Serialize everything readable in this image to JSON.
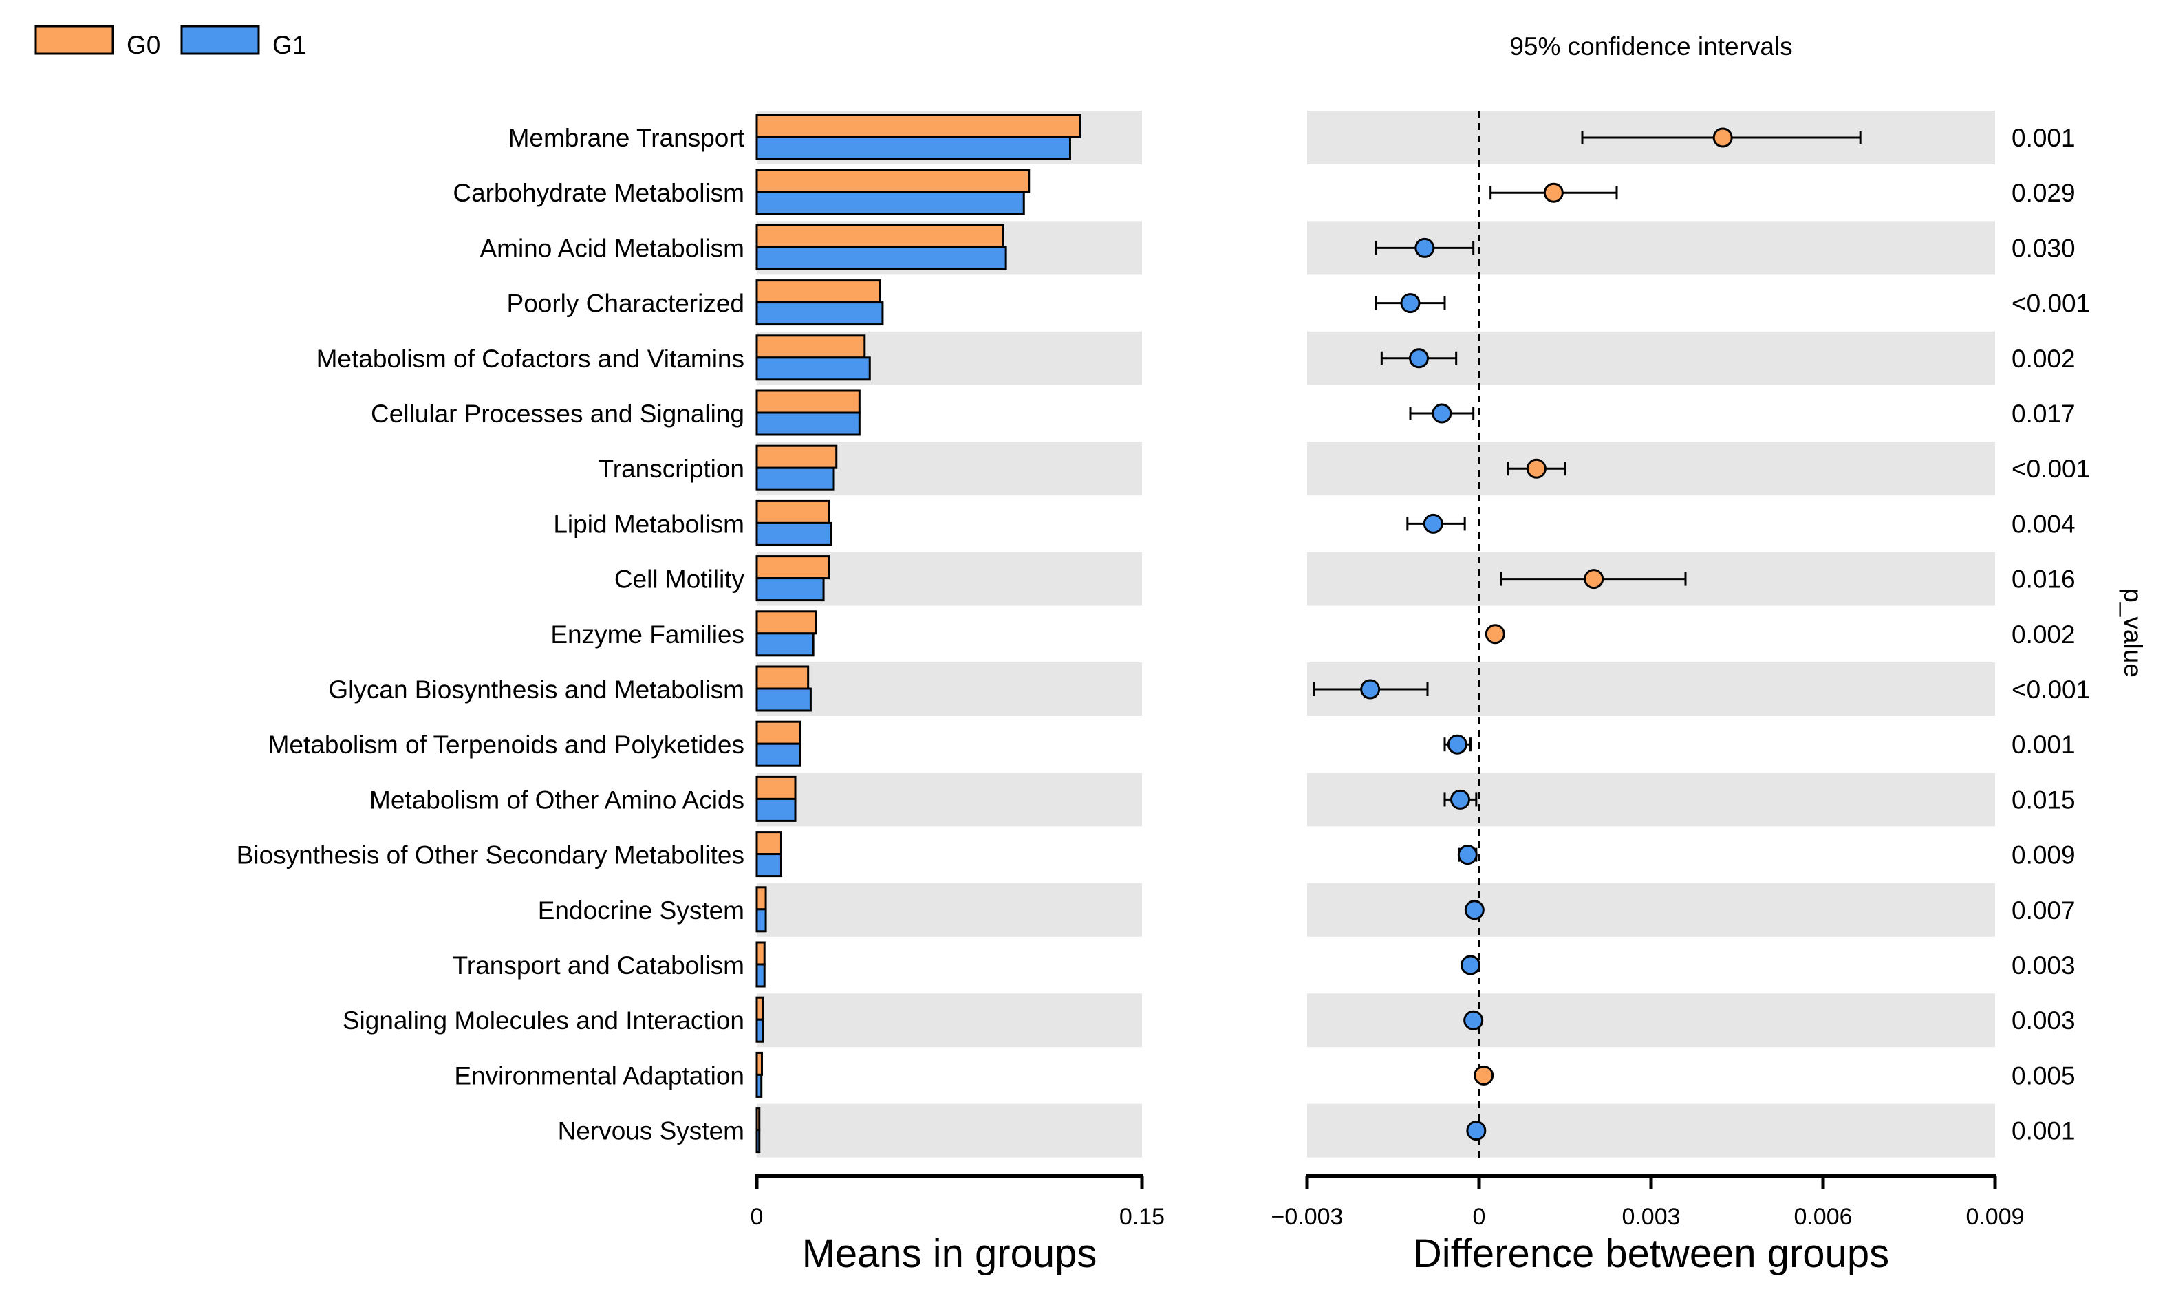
{
  "chart_data": {
    "type": "bar",
    "legend": [
      {
        "name": "G0",
        "color": "#FCA35D"
      },
      {
        "name": "G1",
        "color": "#4A96EE"
      }
    ],
    "categories": [
      "Membrane Transport",
      "Carbohydrate Metabolism",
      "Amino Acid Metabolism",
      "Poorly Characterized",
      "Metabolism of Cofactors and Vitamins",
      "Cellular Processes and Signaling",
      "Transcription",
      "Lipid Metabolism",
      "Cell Motility",
      "Enzyme Families",
      "Glycan Biosynthesis and Metabolism",
      "Metabolism of Terpenoids and Polyketides",
      "Metabolism of Other Amino Acids",
      "Biosynthesis of Other Secondary Metabolites",
      "Endocrine System",
      "Transport and Catabolism",
      "Signaling Molecules and Interaction",
      "Environmental Adaptation",
      "Nervous System"
    ],
    "means_panel": {
      "xlabel": "Means in groups",
      "xlim": [
        0,
        0.15
      ],
      "xticks": [
        "0",
        "0.15"
      ],
      "series": [
        {
          "name": "G0",
          "values": [
            0.126,
            0.106,
            0.096,
            0.048,
            0.042,
            0.04,
            0.031,
            0.028,
            0.028,
            0.023,
            0.02,
            0.017,
            0.015,
            0.0095,
            0.0035,
            0.003,
            0.0023,
            0.002,
            0.001
          ]
        },
        {
          "name": "G1",
          "values": [
            0.122,
            0.104,
            0.097,
            0.049,
            0.044,
            0.04,
            0.03,
            0.029,
            0.026,
            0.022,
            0.021,
            0.017,
            0.015,
            0.0095,
            0.0035,
            0.003,
            0.0023,
            0.0018,
            0.001
          ]
        }
      ]
    },
    "ci_panel": {
      "title": "95% confidence intervals",
      "xlabel": "Difference between groups",
      "xlim": [
        -0.003,
        0.009
      ],
      "xticks": [
        "−0.003",
        "0",
        "0.003",
        "0.006",
        "0.009"
      ],
      "diff": [
        0.00425,
        0.0013,
        -0.00095,
        -0.0012,
        -0.00105,
        -0.00065,
        0.001,
        -0.0008,
        0.002,
        0.00028,
        -0.0019,
        -0.00038,
        -0.00033,
        -0.0002,
        -8e-05,
        -0.00015,
        -0.0001,
        8e-05,
        -5e-05
      ],
      "ci_low": [
        0.0018,
        0.0002,
        -0.0018,
        -0.0018,
        -0.0017,
        -0.0012,
        0.0005,
        -0.00125,
        0.00038,
        0.00018,
        -0.00288,
        -0.0006,
        -0.0006,
        -0.00035,
        -0.00012,
        -0.0002,
        -0.00015,
        2e-05,
        -8e-05
      ],
      "ci_high": [
        0.00665,
        0.0024,
        -0.0001,
        -0.0006,
        -0.0004,
        -0.0001,
        0.0015,
        -0.00025,
        0.0036,
        0.00038,
        -0.0009,
        -0.00015,
        -5e-05,
        -5e-05,
        -3e-05,
        -0.0001,
        -5e-05,
        0.00014,
        -2e-05
      ],
      "favored": [
        "G0",
        "G0",
        "G1",
        "G1",
        "G1",
        "G1",
        "G0",
        "G1",
        "G0",
        "G0",
        "G1",
        "G1",
        "G1",
        "G1",
        "G1",
        "G1",
        "G1",
        "G0",
        "G1"
      ]
    },
    "p_value_label": "p_value",
    "p_values": [
      "0.001",
      "0.029",
      "0.030",
      "<0.001",
      "0.002",
      "0.017",
      "<0.001",
      "0.004",
      "0.016",
      "0.002",
      "<0.001",
      "0.001",
      "0.015",
      "0.009",
      "0.007",
      "0.003",
      "0.003",
      "0.005",
      "0.001"
    ]
  }
}
